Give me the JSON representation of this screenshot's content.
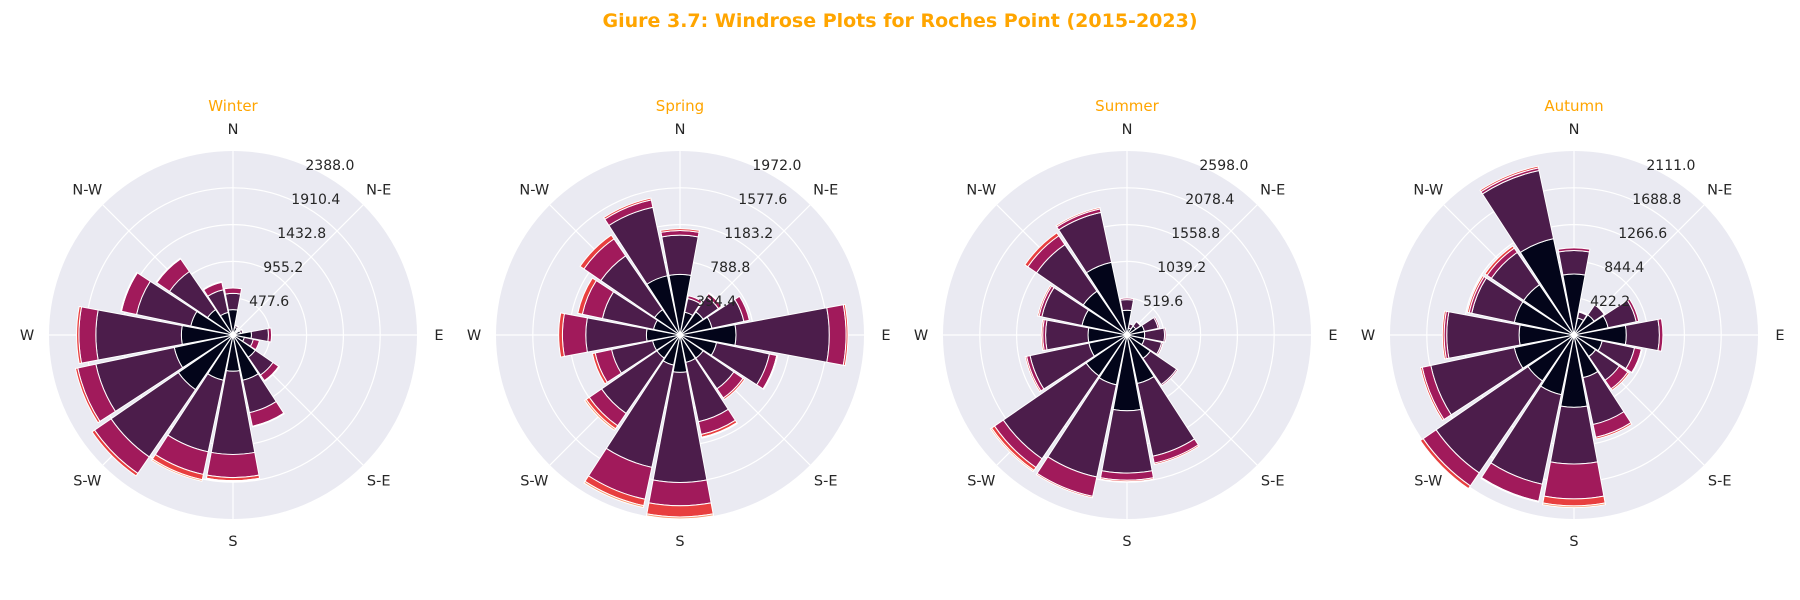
{
  "figure": {
    "title": "Giure 3.7: Windrose Plots for Roches Point (2015-2023)",
    "title_color": "#FFA500",
    "background": "#EAEAF2"
  },
  "chart_data": [
    {
      "type": "windrose",
      "title": "Winter",
      "directions": [
        "N",
        "NNE",
        "NE",
        "ENE",
        "E",
        "ESE",
        "SE",
        "SSE",
        "S",
        "SSW",
        "SW",
        "WSW",
        "W",
        "WNW",
        "NW",
        "NNW"
      ],
      "direction_labels": [
        "N",
        "N-E",
        "E",
        "S-E",
        "S",
        "S-W",
        "W",
        "N-W"
      ],
      "ring_ticks": [
        "477.6",
        "955.2",
        "1432.8",
        "1910.4",
        "2388.0"
      ],
      "rmax": 2388.0,
      "bin_colors": [
        "#03051A",
        "#4C1D4B",
        "#A11A5B",
        "#E83F3F",
        "#F69C73"
      ],
      "stacks": [
        [
          330,
          210,
          70,
          0,
          0
        ],
        [
          100,
          25,
          5,
          0,
          0
        ],
        [
          50,
          10,
          0,
          0,
          0
        ],
        [
          100,
          30,
          5,
          0,
          0
        ],
        [
          240,
          220,
          40,
          0,
          0
        ],
        [
          150,
          120,
          80,
          0,
          0
        ],
        [
          350,
          280,
          90,
          10,
          0
        ],
        [
          600,
          430,
          180,
          10,
          0
        ],
        [
          470,
          1080,
          300,
          40,
          10
        ],
        [
          600,
          950,
          300,
          70,
          20
        ],
        [
          860,
          1060,
          260,
          40,
          0
        ],
        [
          780,
          1040,
          240,
          30,
          0
        ],
        [
          670,
          1110,
          220,
          30,
          0
        ],
        [
          560,
          720,
          200,
          10,
          0
        ],
        [
          400,
          600,
          200,
          10,
          0
        ],
        [
          300,
          300,
          100,
          10,
          0
        ]
      ]
    },
    {
      "type": "windrose",
      "title": "Spring",
      "directions": [
        "N",
        "NNE",
        "NE",
        "ENE",
        "E",
        "ESE",
        "SE",
        "SSE",
        "S",
        "SSW",
        "SW",
        "WSW",
        "W",
        "WNW",
        "NW",
        "NNW"
      ],
      "direction_labels": [
        "N",
        "N-E",
        "E",
        "S-E",
        "S",
        "S-W",
        "W",
        "N-W"
      ],
      "ring_ticks": [
        "394.4",
        "788.8",
        "1183.2",
        "1577.6",
        "1972.0"
      ],
      "rmax": 1972.0,
      "bin_colors": [
        "#03051A",
        "#4C1D4B",
        "#A11A5B",
        "#E83F3F",
        "#F69C73"
      ],
      "stacks": [
        [
          650,
          420,
          50,
          20,
          0
        ],
        [
          250,
          150,
          30,
          0,
          0
        ],
        [
          300,
          200,
          40,
          10,
          0
        ],
        [
          350,
          350,
          60,
          0,
          0
        ],
        [
          600,
          1000,
          180,
          20,
          0
        ],
        [
          400,
          580,
          80,
          10,
          0
        ],
        [
          300,
          400,
          120,
          20,
          0
        ],
        [
          300,
          650,
          140,
          30,
          10
        ],
        [
          400,
          1180,
          250,
          120,
          20
        ],
        [
          330,
          1120,
          350,
          70,
          20
        ],
        [
          300,
          720,
          160,
          40,
          20
        ],
        [
          300,
          450,
          180,
          30,
          0
        ],
        [
          360,
          650,
          250,
          40,
          0
        ],
        [
          290,
          560,
          220,
          50,
          0
        ],
        [
          330,
          700,
          220,
          50,
          0
        ],
        [
          650,
          750,
          80,
          20,
          0
        ]
      ]
    },
    {
      "type": "windrose",
      "title": "Summer",
      "directions": [
        "N",
        "NNE",
        "NE",
        "ENE",
        "E",
        "ESE",
        "SE",
        "SSE",
        "S",
        "SSW",
        "SW",
        "WSW",
        "W",
        "WNW",
        "NW",
        "NNW"
      ],
      "direction_labels": [
        "N",
        "N-E",
        "E",
        "S-E",
        "S",
        "S-W",
        "W",
        "N-W"
      ],
      "ring_ticks": [
        "519.6",
        "1039.2",
        "1558.8",
        "2078.4",
        "2598.0"
      ],
      "rmax": 2598.0,
      "bin_colors": [
        "#03051A",
        "#4C1D4B",
        "#A11A5B",
        "#E83F3F",
        "#F69C73"
      ],
      "stacks": [
        [
          350,
          150,
          20,
          0,
          0
        ],
        [
          100,
          60,
          0,
          0,
          0
        ],
        [
          150,
          80,
          10,
          0,
          0
        ],
        [
          250,
          200,
          20,
          0,
          0
        ],
        [
          250,
          280,
          20,
          0,
          0
        ],
        [
          250,
          250,
          20,
          0,
          0
        ],
        [
          400,
          450,
          20,
          0,
          0
        ],
        [
          700,
          1050,
          100,
          20,
          0
        ],
        [
          1070,
          880,
          100,
          20,
          0
        ],
        [
          720,
          1330,
          280,
          20,
          0
        ],
        [
          700,
          1420,
          150,
          50,
          20
        ],
        [
          550,
          850,
          50,
          20,
          0
        ],
        [
          550,
          600,
          40,
          20,
          0
        ],
        [
          650,
          580,
          40,
          20,
          0
        ],
        [
          750,
          800,
          150,
          50,
          0
        ],
        [
          1050,
          720,
          50,
          20,
          0
        ]
      ]
    },
    {
      "type": "windrose",
      "title": "Autumn",
      "directions": [
        "N",
        "NNE",
        "NE",
        "ENE",
        "E",
        "ESE",
        "SE",
        "SSE",
        "S",
        "SSW",
        "SW",
        "WSW",
        "W",
        "WNW",
        "NW",
        "NNW"
      ],
      "direction_labels": [
        "N",
        "N-E",
        "E",
        "S-E",
        "S",
        "S-W",
        "W",
        "N-W"
      ],
      "ring_ticks": [
        "422.2",
        "844.4",
        "1266.6",
        "1688.8",
        "2111.0"
      ],
      "rmax": 2111.0,
      "bin_colors": [
        "#03051A",
        "#4C1D4B",
        "#A11A5B",
        "#E83F3F",
        "#F69C73"
      ],
      "stacks": [
        [
          700,
          270,
          30,
          0,
          0
        ],
        [
          200,
          70,
          10,
          0,
          0
        ],
        [
          280,
          140,
          10,
          0,
          0
        ],
        [
          400,
          330,
          30,
          0,
          0
        ],
        [
          600,
          380,
          40,
          0,
          0
        ],
        [
          330,
          380,
          80,
          10,
          0
        ],
        [
          300,
          330,
          120,
          20,
          0
        ],
        [
          500,
          550,
          150,
          20,
          0
        ],
        [
          830,
          650,
          400,
          80,
          20
        ],
        [
          700,
          1050,
          200,
          10,
          0
        ],
        [
          640,
          1280,
          180,
          40,
          10
        ],
        [
          700,
          980,
          100,
          20,
          0
        ],
        [
          630,
          830,
          30,
          20,
          0
        ],
        [
          700,
          500,
          30,
          20,
          0
        ],
        [
          700,
          450,
          60,
          30,
          0
        ],
        [
          1130,
          800,
          30,
          20,
          0
        ]
      ]
    }
  ]
}
